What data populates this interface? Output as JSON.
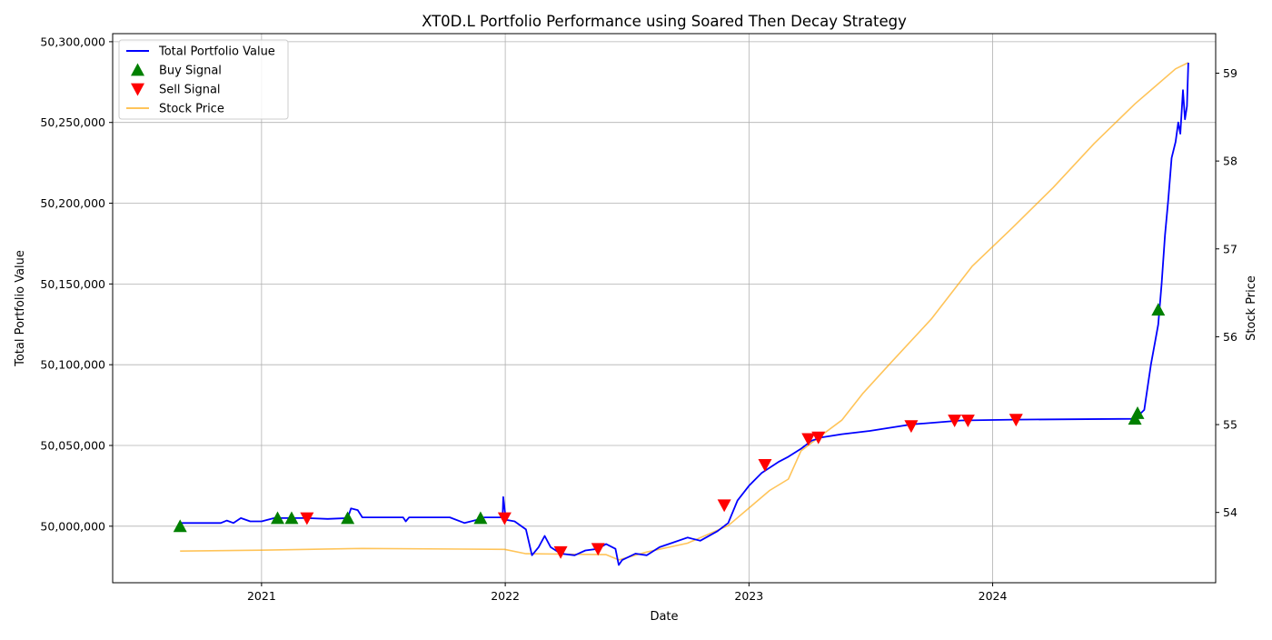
{
  "chart_data": {
    "type": "line",
    "title": "XT0D.L Portfolio Performance using Soared Then Decay Strategy",
    "xlabel": "Date",
    "ylabel_left": "Total Portfolio Value",
    "ylabel_right": "Stock Price",
    "x_range": [
      "2020-05-23",
      "2024-11-30"
    ],
    "ylim_left": [
      49965000,
      50305000
    ],
    "ylim_right": [
      53.2,
      59.45
    ],
    "x_ticks": [
      {
        "date": "2021-01-01",
        "label": "2021"
      },
      {
        "date": "2022-01-01",
        "label": "2022"
      },
      {
        "date": "2023-01-01",
        "label": "2023"
      },
      {
        "date": "2024-01-01",
        "label": "2024"
      }
    ],
    "y_ticks_left": [
      {
        "value": 50000000,
        "label": "50,000,000"
      },
      {
        "value": 50050000,
        "label": "50,050,000"
      },
      {
        "value": 50100000,
        "label": "50,100,000"
      },
      {
        "value": 50150000,
        "label": "50,150,000"
      },
      {
        "value": 50200000,
        "label": "50,200,000"
      },
      {
        "value": 50250000,
        "label": "50,250,000"
      },
      {
        "value": 50300000,
        "label": "50,300,000"
      }
    ],
    "y_ticks_right": [
      {
        "value": 54,
        "label": "54"
      },
      {
        "value": 55,
        "label": "55"
      },
      {
        "value": 56,
        "label": "56"
      },
      {
        "value": 57,
        "label": "57"
      },
      {
        "value": 58,
        "label": "58"
      },
      {
        "value": 59,
        "label": "59"
      }
    ],
    "grid": true,
    "legend_position": "top-left",
    "legend": [
      {
        "label": "Total Portfolio Value",
        "kind": "line",
        "color": "#0000ff"
      },
      {
        "label": "Buy Signal",
        "kind": "marker-up",
        "color": "#008000"
      },
      {
        "label": "Sell Signal",
        "kind": "marker-down",
        "color": "#ff0000"
      },
      {
        "label": "Stock Price",
        "kind": "line",
        "color": "#ffa500"
      }
    ],
    "series": [
      {
        "name": "Total Portfolio Value",
        "axis": "left",
        "color": "#0000ff",
        "points": [
          [
            "2020-09-01",
            50000000
          ],
          [
            "2020-09-02",
            50002000
          ],
          [
            "2020-11-01",
            50002000
          ],
          [
            "2020-11-10",
            50003500
          ],
          [
            "2020-11-20",
            50002000
          ],
          [
            "2020-12-01",
            50005000
          ],
          [
            "2020-12-15",
            50003000
          ],
          [
            "2021-01-01",
            50003000
          ],
          [
            "2021-01-20",
            50005000
          ],
          [
            "2021-02-15",
            50005000
          ],
          [
            "2021-03-10",
            50005000
          ],
          [
            "2021-04-10",
            50004500
          ],
          [
            "2021-05-10",
            50005000
          ],
          [
            "2021-05-15",
            50011000
          ],
          [
            "2021-05-25",
            50010000
          ],
          [
            "2021-06-01",
            50005500
          ],
          [
            "2021-07-15",
            50005500
          ],
          [
            "2021-08-01",
            50005500
          ],
          [
            "2021-08-05",
            50003000
          ],
          [
            "2021-08-10",
            50005500
          ],
          [
            "2021-10-10",
            50005500
          ],
          [
            "2021-11-01",
            50002000
          ],
          [
            "2021-11-20",
            50004000
          ],
          [
            "2021-12-01",
            50005500
          ],
          [
            "2021-12-28",
            50005500
          ],
          [
            "2021-12-29",
            50018000
          ],
          [
            "2022-01-02",
            50004000
          ],
          [
            "2022-01-15",
            50003000
          ],
          [
            "2022-02-01",
            49998000
          ],
          [
            "2022-02-10",
            49982000
          ],
          [
            "2022-02-20",
            49987000
          ],
          [
            "2022-03-01",
            49994000
          ],
          [
            "2022-03-10",
            49987000
          ],
          [
            "2022-03-25",
            49983000
          ],
          [
            "2022-04-15",
            49982000
          ],
          [
            "2022-05-01",
            49985000
          ],
          [
            "2022-05-20",
            49986000
          ],
          [
            "2022-06-01",
            49989000
          ],
          [
            "2022-06-15",
            49986000
          ],
          [
            "2022-06-20",
            49976000
          ],
          [
            "2022-06-25",
            49979000
          ],
          [
            "2022-07-15",
            49983000
          ],
          [
            "2022-08-01",
            49982000
          ],
          [
            "2022-08-20",
            49987000
          ],
          [
            "2022-09-10",
            49990000
          ],
          [
            "2022-10-01",
            49993000
          ],
          [
            "2022-10-20",
            49991000
          ],
          [
            "2022-11-15",
            49997000
          ],
          [
            "2022-12-01",
            50002000
          ],
          [
            "2022-12-15",
            50016000
          ],
          [
            "2023-01-01",
            50025000
          ],
          [
            "2023-01-20",
            50033000
          ],
          [
            "2023-02-15",
            50040000
          ],
          [
            "2023-03-01",
            50043000
          ],
          [
            "2023-03-20",
            50048000
          ],
          [
            "2023-04-05",
            50053000
          ],
          [
            "2023-04-20",
            50055000
          ],
          [
            "2023-05-20",
            50057000
          ],
          [
            "2023-07-01",
            50059000
          ],
          [
            "2023-09-01",
            50063000
          ],
          [
            "2023-11-15",
            50065500
          ],
          [
            "2024-02-01",
            50066000
          ],
          [
            "2024-08-01",
            50066500
          ],
          [
            "2024-08-15",
            50072000
          ],
          [
            "2024-08-25",
            50100000
          ],
          [
            "2024-09-01",
            50116000
          ],
          [
            "2024-09-05",
            50125000
          ],
          [
            "2024-09-10",
            50150000
          ],
          [
            "2024-09-15",
            50180000
          ],
          [
            "2024-09-20",
            50202000
          ],
          [
            "2024-09-25",
            50228000
          ],
          [
            "2024-10-01",
            50238000
          ],
          [
            "2024-10-05",
            50250000
          ],
          [
            "2024-10-08",
            50243000
          ],
          [
            "2024-10-12",
            50270000
          ],
          [
            "2024-10-15",
            50252000
          ],
          [
            "2024-10-18",
            50260000
          ],
          [
            "2024-10-20",
            50287000
          ]
        ]
      },
      {
        "name": "Stock Price",
        "axis": "right",
        "color": "#ffa500",
        "points": [
          [
            "2020-09-01",
            53.56
          ],
          [
            "2021-01-01",
            53.57
          ],
          [
            "2021-06-01",
            53.59
          ],
          [
            "2021-12-31",
            53.58
          ],
          [
            "2022-02-01",
            53.53
          ],
          [
            "2022-06-01",
            53.52
          ],
          [
            "2022-06-20",
            53.46
          ],
          [
            "2022-08-01",
            53.55
          ],
          [
            "2022-10-01",
            53.65
          ],
          [
            "2022-12-01",
            53.85
          ],
          [
            "2023-01-01",
            54.05
          ],
          [
            "2023-02-01",
            54.25
          ],
          [
            "2023-03-01",
            54.38
          ],
          [
            "2023-03-20",
            54.7
          ],
          [
            "2023-04-20",
            54.88
          ],
          [
            "2023-05-20",
            55.05
          ],
          [
            "2023-06-20",
            55.35
          ],
          [
            "2023-08-01",
            55.7
          ],
          [
            "2023-10-01",
            56.2
          ],
          [
            "2023-12-01",
            56.8
          ],
          [
            "2024-02-01",
            57.25
          ],
          [
            "2024-04-01",
            57.7
          ],
          [
            "2024-06-01",
            58.2
          ],
          [
            "2024-08-01",
            58.65
          ],
          [
            "2024-10-01",
            59.05
          ],
          [
            "2024-10-20",
            59.12
          ]
        ]
      }
    ],
    "buy_signals": [
      [
        "2020-09-01",
        50000000
      ],
      [
        "2021-01-25",
        50005000
      ],
      [
        "2021-02-15",
        50005000
      ],
      [
        "2021-05-10",
        50005000
      ],
      [
        "2021-11-25",
        50005000
      ],
      [
        "2024-08-01",
        50066500
      ],
      [
        "2024-08-05",
        50070000
      ],
      [
        "2024-09-05",
        50134000
      ]
    ],
    "sell_signals": [
      [
        "2021-03-10",
        50005000
      ],
      [
        "2021-12-31",
        50005000
      ],
      [
        "2022-03-25",
        49984000
      ],
      [
        "2022-05-20",
        49986000
      ],
      [
        "2022-11-25",
        50013000
      ],
      [
        "2023-01-25",
        50038000
      ],
      [
        "2023-03-31",
        50054000
      ],
      [
        "2023-04-15",
        50055000
      ],
      [
        "2023-09-01",
        50062000
      ],
      [
        "2023-11-05",
        50065500
      ],
      [
        "2023-11-25",
        50065500
      ],
      [
        "2024-02-05",
        50066000
      ]
    ]
  }
}
